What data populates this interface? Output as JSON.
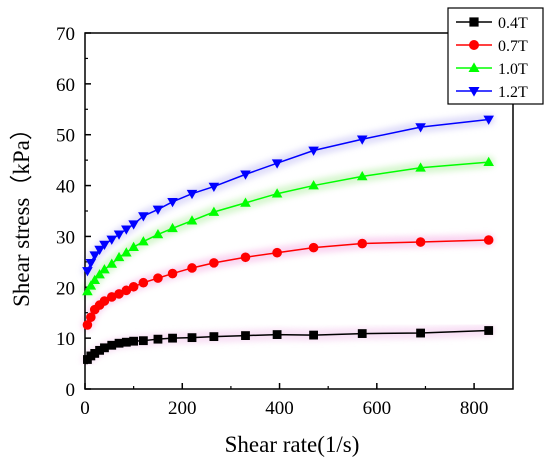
{
  "chart_data": {
    "type": "line",
    "xlabel": "Shear rate(1/s)",
    "ylabel": "Shear stress（kPa）",
    "xlim": [
      0,
      880
    ],
    "ylim": [
      0,
      70
    ],
    "xticks": [
      0,
      200,
      400,
      600,
      800
    ],
    "yticks": [
      0,
      10,
      20,
      30,
      40,
      50,
      60,
      70
    ],
    "xtick_labels": [
      "0",
      "200",
      "400",
      "600",
      "800"
    ],
    "ytick_labels": [
      "0",
      "10",
      "20",
      "30",
      "40",
      "50",
      "60",
      "70"
    ],
    "legend_position": "top-right",
    "series": [
      {
        "name": "0.4T",
        "color": "#000000",
        "marker": "square",
        "x": [
          5,
          12,
          20,
          30,
          40,
          55,
          70,
          85,
          100,
          120,
          150,
          180,
          220,
          265,
          330,
          395,
          470,
          570,
          690,
          830
        ],
        "y": [
          5.8,
          6.5,
          7.0,
          7.6,
          8.1,
          8.6,
          9.0,
          9.2,
          9.4,
          9.5,
          9.8,
          10.0,
          10.1,
          10.3,
          10.5,
          10.7,
          10.6,
          10.9,
          11.0,
          11.5
        ]
      },
      {
        "name": "0.7T",
        "color": "#ff0000",
        "marker": "circle",
        "x": [
          5,
          12,
          20,
          30,
          40,
          55,
          70,
          85,
          100,
          120,
          150,
          180,
          220,
          265,
          330,
          395,
          470,
          570,
          690,
          830
        ],
        "y": [
          12.6,
          14.1,
          15.6,
          16.5,
          17.3,
          18.1,
          18.7,
          19.4,
          20.1,
          20.9,
          21.8,
          22.7,
          23.8,
          24.8,
          25.9,
          26.8,
          27.8,
          28.6,
          28.9,
          29.3
        ]
      },
      {
        "name": "1.0T",
        "color": "#00ff00",
        "marker": "triangle-up",
        "x": [
          5,
          12,
          20,
          30,
          40,
          55,
          70,
          85,
          100,
          120,
          150,
          180,
          220,
          265,
          330,
          395,
          470,
          570,
          690,
          830
        ],
        "y": [
          19.2,
          20.3,
          21.4,
          22.5,
          23.5,
          24.6,
          25.9,
          26.8,
          27.9,
          29.0,
          30.4,
          31.6,
          33.1,
          34.8,
          36.6,
          38.4,
          40.0,
          41.8,
          43.5,
          44.6
        ]
      },
      {
        "name": "1.2T",
        "color": "#0000ff",
        "marker": "triangle-down",
        "x": [
          5,
          12,
          20,
          30,
          40,
          55,
          70,
          85,
          100,
          120,
          150,
          180,
          220,
          265,
          330,
          395,
          470,
          570,
          690,
          830
        ],
        "y": [
          23.2,
          24.8,
          26.3,
          27.4,
          28.4,
          29.4,
          30.4,
          31.4,
          32.4,
          34.0,
          35.3,
          36.8,
          38.4,
          39.8,
          42.2,
          44.4,
          46.9,
          49.1,
          51.5,
          53.0
        ]
      }
    ]
  }
}
